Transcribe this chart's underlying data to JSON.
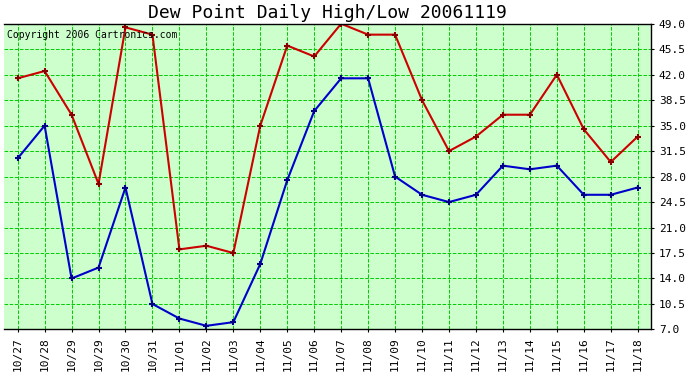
{
  "title": "Dew Point Daily High/Low 20061119",
  "copyright": "Copyright 2006 Cartronics.com",
  "dates": [
    "10/27",
    "10/28",
    "10/29",
    "10/29",
    "10/30",
    "10/31",
    "11/01",
    "11/02",
    "11/03",
    "11/04",
    "11/05",
    "11/06",
    "11/07",
    "11/08",
    "11/09",
    "11/10",
    "11/11",
    "11/12",
    "11/13",
    "11/14",
    "11/15",
    "11/16",
    "11/17",
    "11/18"
  ],
  "high_values": [
    41.5,
    42.5,
    36.5,
    27.0,
    48.5,
    47.5,
    18.0,
    18.5,
    17.5,
    35.0,
    46.0,
    44.5,
    49.0,
    47.5,
    47.5,
    38.5,
    31.5,
    33.5,
    36.5,
    36.5,
    42.0,
    34.5,
    30.0,
    33.5
  ],
  "low_values": [
    30.5,
    35.0,
    14.0,
    15.5,
    26.5,
    10.5,
    8.5,
    7.5,
    8.0,
    16.0,
    27.5,
    37.0,
    41.5,
    41.5,
    28.0,
    25.5,
    24.5,
    25.5,
    29.5,
    29.0,
    29.5,
    25.5,
    25.5,
    26.5
  ],
  "high_color": "#cc0000",
  "low_color": "#0000cc",
  "bg_color": "#ccffcc",
  "grid_color": "#00cc00",
  "outer_bg": "#ffffff",
  "yticks": [
    7.0,
    10.5,
    14.0,
    17.5,
    21.0,
    24.5,
    28.0,
    31.5,
    35.0,
    38.5,
    42.0,
    45.5,
    49.0
  ],
  "ylim_low": 7.0,
  "ylim_high": 49.0,
  "title_fontsize": 13,
  "tick_fontsize": 8,
  "copyright_fontsize": 7
}
